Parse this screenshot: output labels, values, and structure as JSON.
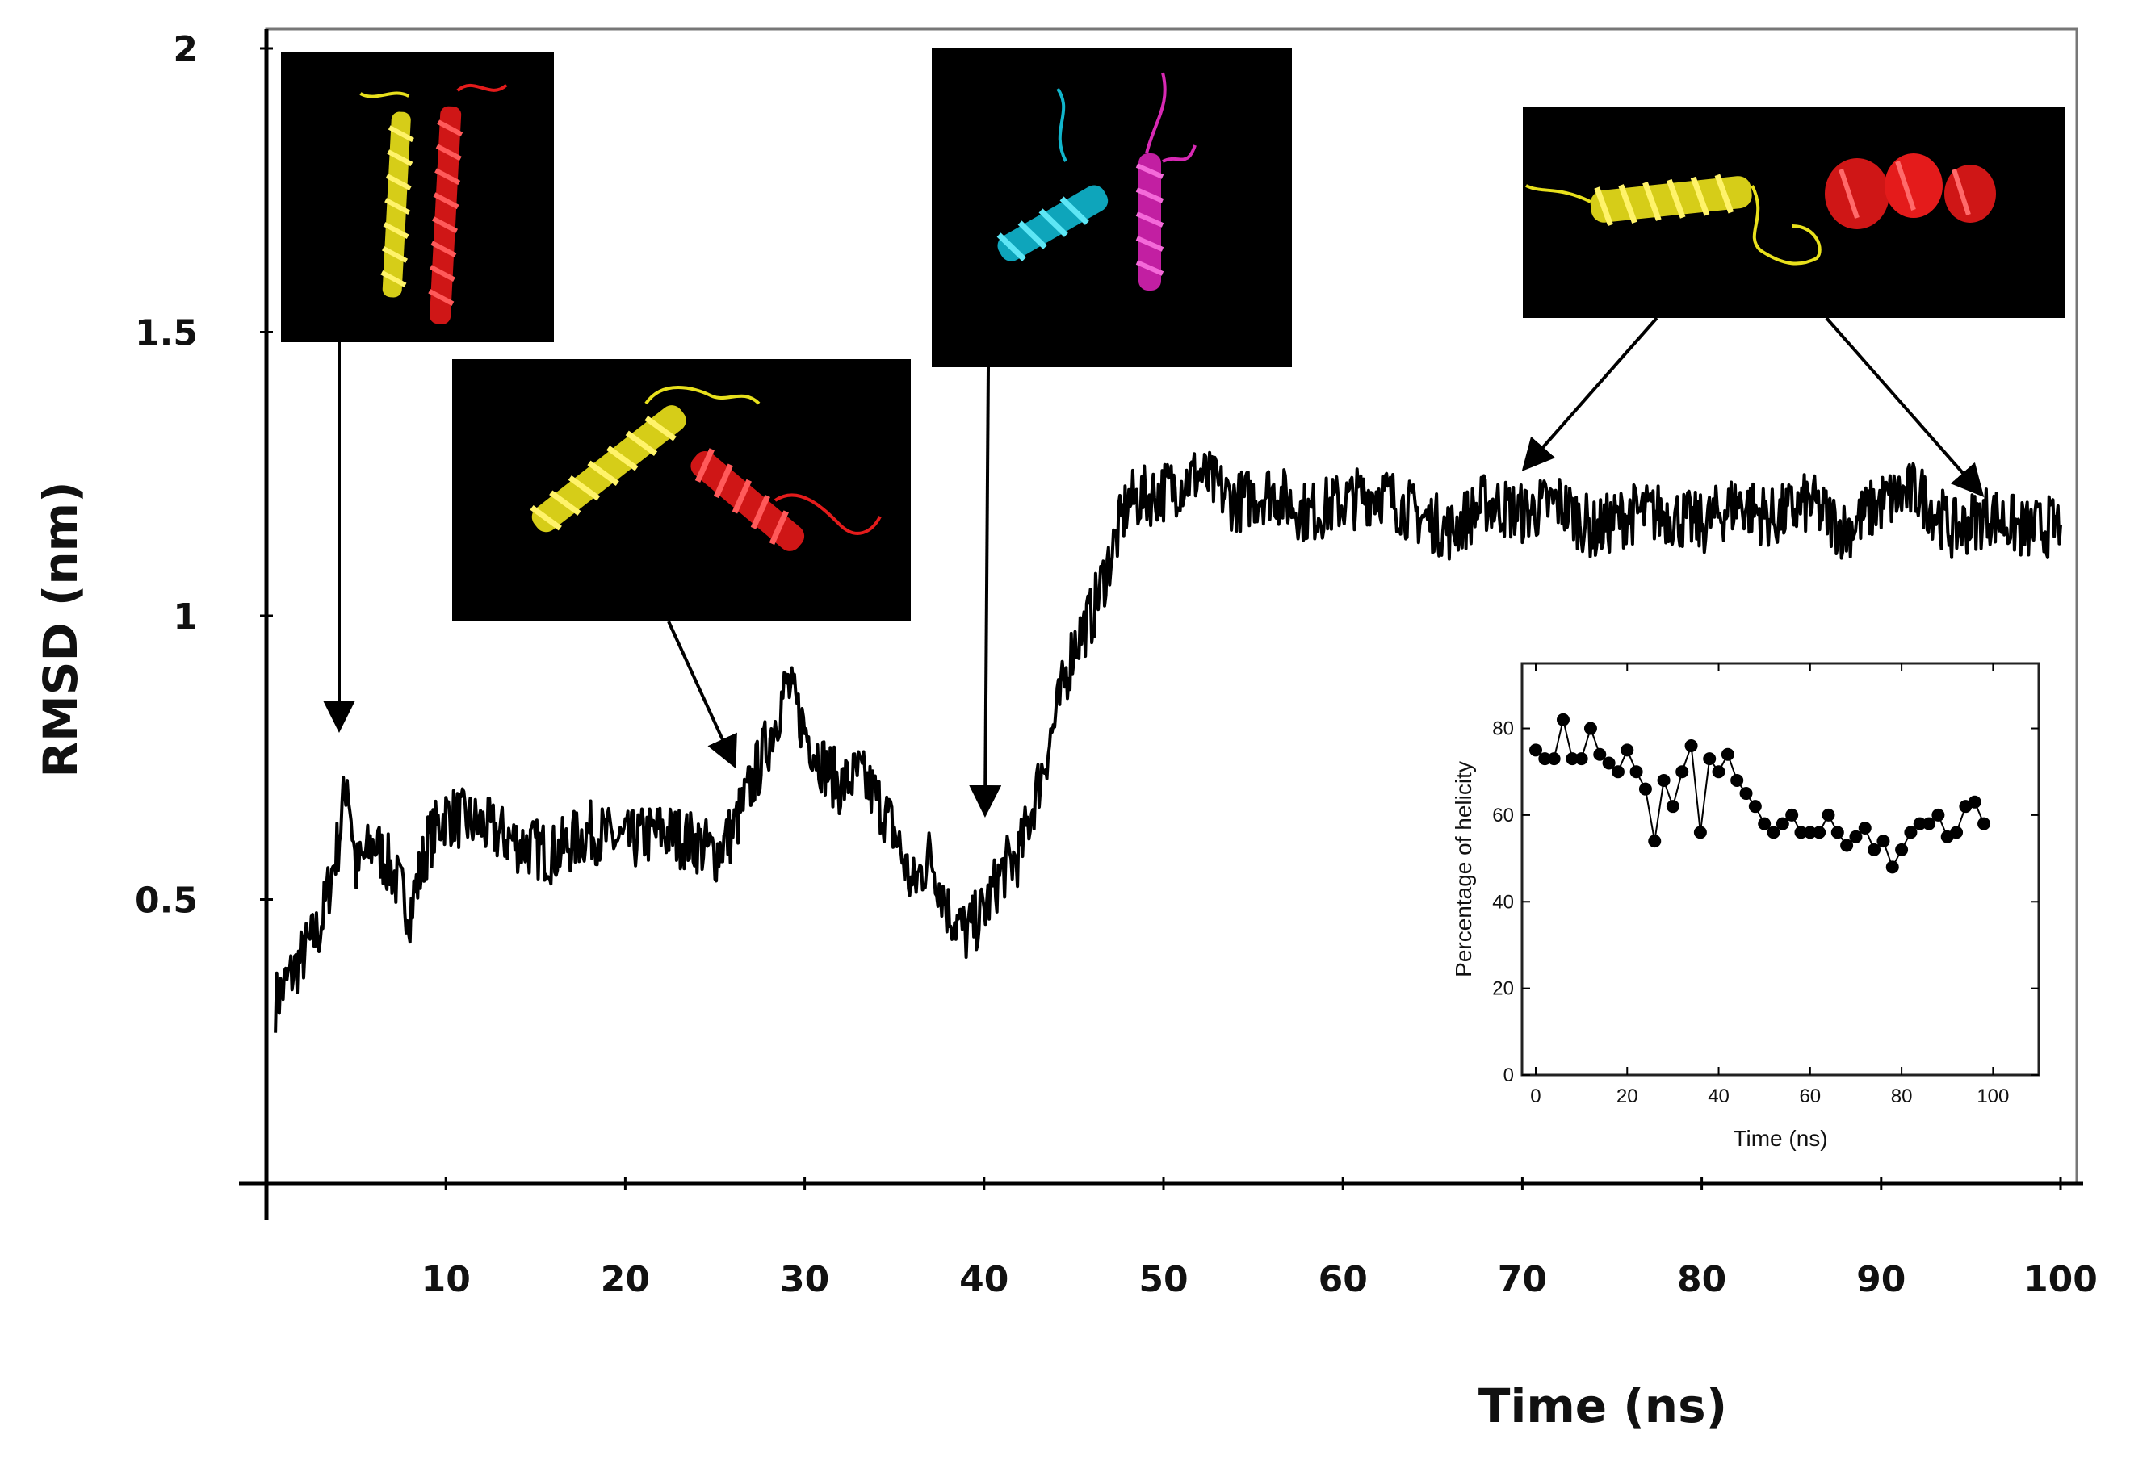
{
  "chart_data": [
    {
      "type": "line",
      "title": "",
      "xlabel": "Time (ns)",
      "ylabel": "RMSD (nm)",
      "xlim": [
        0,
        100
      ],
      "ylim": [
        0,
        2
      ],
      "x_ticks": [
        10,
        20,
        30,
        40,
        50,
        60,
        70,
        80,
        90,
        100
      ],
      "y_ticks": [
        0.5,
        1,
        1.5,
        2
      ],
      "y_tick_labels": [
        "0.5",
        "1",
        "1.5",
        "2"
      ],
      "grid": false,
      "series": [
        {
          "color": "#000000",
          "x": [
            0.5,
            2,
            3,
            4,
            4.5,
            5,
            6,
            7,
            8,
            9,
            10,
            12,
            14,
            16,
            18,
            20,
            22,
            24,
            25,
            26,
            27,
            28,
            29,
            30,
            31,
            32,
            33,
            34,
            35,
            36,
            37,
            38,
            39,
            40,
            41,
            42,
            43,
            44,
            45,
            46,
            47,
            48,
            50,
            52,
            54,
            56,
            58,
            60,
            62,
            64,
            66,
            68,
            70,
            72,
            74,
            76,
            78,
            80,
            82,
            84,
            86,
            88,
            90,
            92,
            94,
            96,
            98,
            100
          ],
          "y": [
            0.32,
            0.4,
            0.45,
            0.6,
            0.72,
            0.55,
            0.6,
            0.55,
            0.48,
            0.6,
            0.65,
            0.63,
            0.6,
            0.58,
            0.62,
            0.6,
            0.62,
            0.6,
            0.58,
            0.62,
            0.7,
            0.78,
            0.88,
            0.8,
            0.74,
            0.7,
            0.72,
            0.68,
            0.62,
            0.52,
            0.58,
            0.48,
            0.44,
            0.48,
            0.55,
            0.58,
            0.7,
            0.82,
            0.95,
            1.0,
            1.1,
            1.2,
            1.22,
            1.25,
            1.2,
            1.22,
            1.18,
            1.2,
            1.22,
            1.18,
            1.15,
            1.2,
            1.18,
            1.2,
            1.15,
            1.18,
            1.18,
            1.16,
            1.2,
            1.17,
            1.2,
            1.15,
            1.2,
            1.22,
            1.15,
            1.18,
            1.15,
            1.16
          ]
        }
      ],
      "snapshots": [
        {
          "name": "snapshot-t4",
          "colors": [
            "#e8e01c",
            "#e41b1b"
          ],
          "points_to": [
            4,
            0.72
          ]
        },
        {
          "name": "snapshot-t26",
          "colors": [
            "#e8e01c",
            "#e41b1b"
          ],
          "points_to": [
            26,
            0.72
          ]
        },
        {
          "name": "snapshot-t40",
          "colors": [
            "#11b6cc",
            "#d829b4"
          ],
          "points_to": [
            40,
            0.65
          ]
        },
        {
          "name": "snapshot-t70-95",
          "colors": [
            "#e8e01c",
            "#e41b1b"
          ],
          "points_to": [
            [
              70,
              1.3
            ],
            [
              95,
              1.25
            ]
          ]
        }
      ]
    },
    {
      "type": "scatter",
      "title": "",
      "xlabel": "Time (ns)",
      "ylabel": "Percentage of helicity",
      "xlim": [
        -3,
        110
      ],
      "ylim": [
        0,
        95
      ],
      "x_ticks": [
        0,
        20,
        40,
        60,
        80,
        100
      ],
      "y_ticks": [
        0,
        20,
        40,
        60,
        80
      ],
      "grid": false,
      "series": [
        {
          "color": "#000000",
          "x": [
            0,
            2,
            4,
            6,
            8,
            10,
            12,
            14,
            16,
            18,
            20,
            22,
            24,
            26,
            28,
            30,
            32,
            34,
            36,
            38,
            40,
            42,
            44,
            46,
            48,
            50,
            52,
            54,
            56,
            58,
            60,
            62,
            64,
            66,
            68,
            70,
            72,
            74,
            76,
            78,
            80,
            82,
            84,
            86,
            88,
            90,
            92,
            94,
            96,
            98
          ],
          "y": [
            75,
            73,
            73,
            82,
            73,
            73,
            80,
            74,
            72,
            70,
            75,
            70,
            66,
            54,
            68,
            62,
            70,
            76,
            56,
            73,
            70,
            74,
            68,
            65,
            62,
            58,
            56,
            58,
            60,
            56,
            56,
            56,
            60,
            56,
            53,
            55,
            57,
            52,
            54,
            48,
            52,
            56,
            58,
            58,
            60,
            55,
            56,
            62,
            63,
            58
          ]
        }
      ]
    }
  ]
}
